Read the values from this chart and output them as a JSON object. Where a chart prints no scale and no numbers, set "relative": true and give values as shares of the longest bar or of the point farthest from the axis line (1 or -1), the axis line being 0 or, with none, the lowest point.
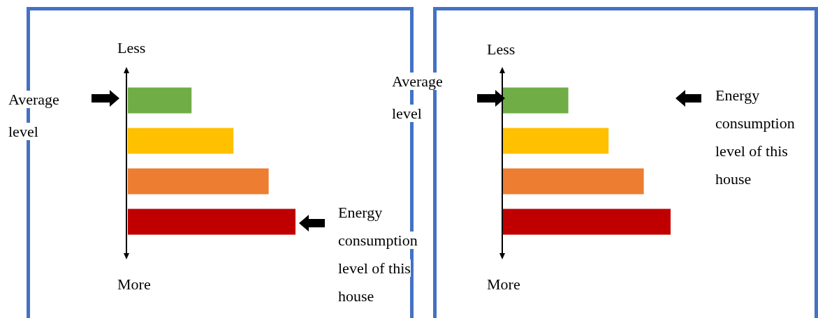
{
  "chart_data": [
    {
      "type": "bar",
      "orientation": "horizontal",
      "relative": true,
      "categories": [
        null,
        null,
        null,
        null
      ],
      "values": [
        0.38,
        0.63,
        0.84,
        1
      ],
      "colors": [
        "#70ad47",
        "#ffc000",
        "#ed7d31",
        "#c00000"
      ],
      "annotations": [
        "Less",
        "More",
        "Average level",
        "Energy consumption level of this house"
      ]
    },
    {
      "type": "bar",
      "orientation": "horizontal",
      "relative": true,
      "categories": [
        null,
        null,
        null,
        null
      ],
      "values": [
        0.39,
        0.63,
        0.84,
        1
      ],
      "colors": [
        "#70ad47",
        "#ffc000",
        "#ed7d31",
        "#c00000"
      ],
      "annotations": [
        "Less",
        "More",
        "Average level",
        "Energy consumption level of this house"
      ]
    }
  ]
}
